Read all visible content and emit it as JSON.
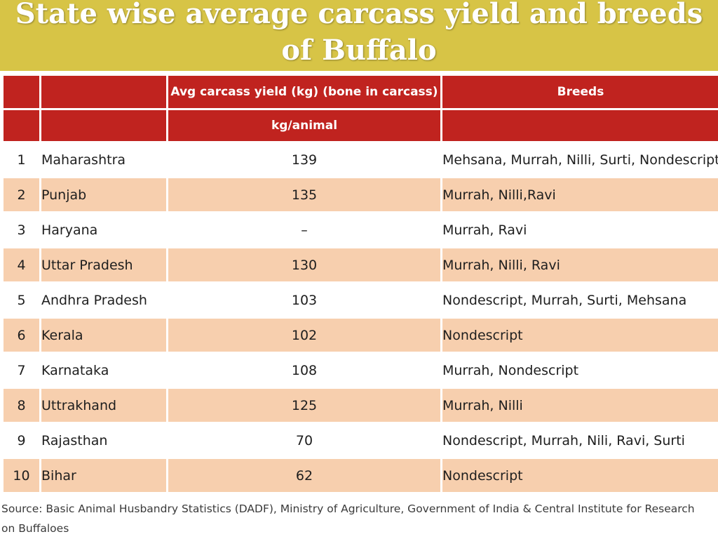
{
  "title": "State wise average carcass yield and breeds of Buffalo",
  "table": {
    "headers": {
      "yield": "Avg carcass yield (kg) (bone in carcass)",
      "unit": "kg/animal",
      "breeds": "Breeds"
    },
    "rows": [
      {
        "num": "1",
        "state": "Maharashtra",
        "yield": "139",
        "breeds": "Mehsana, Murrah, Nilli, Surti, Nondescript"
      },
      {
        "num": "2",
        "state": "Punjab",
        "yield": "135",
        "breeds": "Murrah, Nilli,Ravi"
      },
      {
        "num": "3",
        "state": "Haryana",
        "yield": "–",
        "breeds": "Murrah, Ravi"
      },
      {
        "num": "4",
        "state": "Uttar Pradesh",
        "yield": "130",
        "breeds": "Murrah, Nilli, Ravi"
      },
      {
        "num": "5",
        "state": "Andhra Pradesh",
        "yield": "103",
        "breeds": "Nondescript, Murrah, Surti, Mehsana"
      },
      {
        "num": "6",
        "state": "Kerala",
        "yield": "102",
        "breeds": "Nondescript"
      },
      {
        "num": "7",
        "state": "Karnataka",
        "yield": "108",
        "breeds": "Murrah, Nondescript"
      },
      {
        "num": "8",
        "state": "Uttrakhand",
        "yield": "125",
        "breeds": "Murrah, Nilli"
      },
      {
        "num": "9",
        "state": "Rajasthan",
        "yield": "70",
        "breeds": "Nondescript, Murrah, Nili, Ravi, Surti"
      },
      {
        "num": "10",
        "state": "Bihar",
        "yield": "62",
        "breeds": "Nondescript"
      }
    ]
  },
  "source": "Source: Basic Animal Husbandry Statistics (DADF), Ministry of Agriculture, Government of India & Central Institute for Research on Buffaloes",
  "colors": {
    "title_bar": "#d7c446",
    "header": "#c0231f",
    "row_shade": "#f7cfae"
  }
}
